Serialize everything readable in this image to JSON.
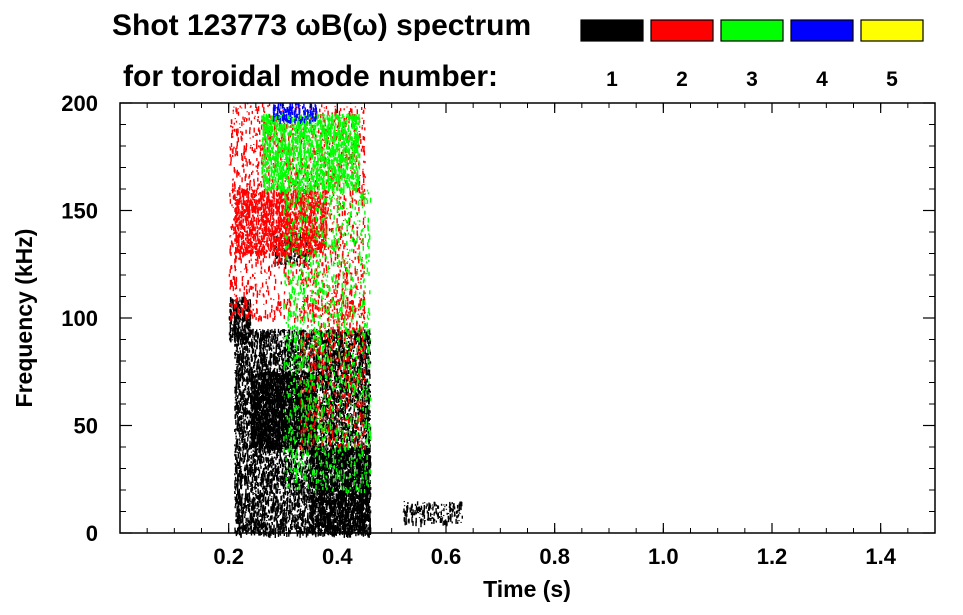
{
  "chart_data": {
    "type": "heatmap",
    "title_line1": "Shot 123773 ωB(ω) spectrum",
    "title_line2": "for toroidal mode number:",
    "xlabel": "Time (s)",
    "ylabel": "Frequency (kHz)",
    "xlim": [
      0.0,
      1.5
    ],
    "ylim": [
      0,
      200
    ],
    "x_ticks": [
      "0.2",
      "0.4",
      "0.6",
      "0.8",
      "1.0",
      "1.2",
      "1.4"
    ],
    "x_tick_values": [
      0.2,
      0.4,
      0.6,
      0.8,
      1.0,
      1.2,
      1.4
    ],
    "y_ticks": [
      "0",
      "50",
      "100",
      "150",
      "200"
    ],
    "y_tick_values": [
      0,
      50,
      100,
      150,
      200
    ],
    "legend": [
      {
        "label": "1",
        "color": "#000000"
      },
      {
        "label": "2",
        "color": "#ff0000"
      },
      {
        "label": "3",
        "color": "#00ff00"
      },
      {
        "label": "4",
        "color": "#0000ff"
      },
      {
        "label": "5",
        "color": "#ffff00"
      }
    ],
    "regions": [
      {
        "mode": "1",
        "t": [
          0.2,
          0.24
        ],
        "f": [
          90,
          110
        ],
        "density": 0.55
      },
      {
        "mode": "1",
        "t": [
          0.21,
          0.46
        ],
        "f": [
          0,
          95
        ],
        "density": 0.5
      },
      {
        "mode": "1",
        "t": [
          0.24,
          0.36
        ],
        "f": [
          40,
          75
        ],
        "density": 0.65
      },
      {
        "mode": "1",
        "t": [
          0.35,
          0.46
        ],
        "f": [
          0,
          40
        ],
        "density": 0.55
      },
      {
        "mode": "1",
        "t": [
          0.28,
          0.35
        ],
        "f": [
          125,
          140
        ],
        "density": 0.25
      },
      {
        "mode": "1",
        "t": [
          0.52,
          0.63
        ],
        "f": [
          5,
          15
        ],
        "density": 0.3
      },
      {
        "mode": "2",
        "t": [
          0.21,
          0.38
        ],
        "f": [
          130,
          160
        ],
        "density": 0.45
      },
      {
        "mode": "2",
        "t": [
          0.2,
          0.45
        ],
        "f": [
          100,
          200
        ],
        "density": 0.12
      },
      {
        "mode": "2",
        "t": [
          0.33,
          0.45
        ],
        "f": [
          40,
          110
        ],
        "density": 0.12
      },
      {
        "mode": "3",
        "t": [
          0.26,
          0.44
        ],
        "f": [
          160,
          195
        ],
        "density": 0.45
      },
      {
        "mode": "3",
        "t": [
          0.3,
          0.46
        ],
        "f": [
          20,
          160
        ],
        "density": 0.1
      },
      {
        "mode": "4",
        "t": [
          0.28,
          0.36
        ],
        "f": [
          192,
          200
        ],
        "density": 0.4
      }
    ]
  }
}
